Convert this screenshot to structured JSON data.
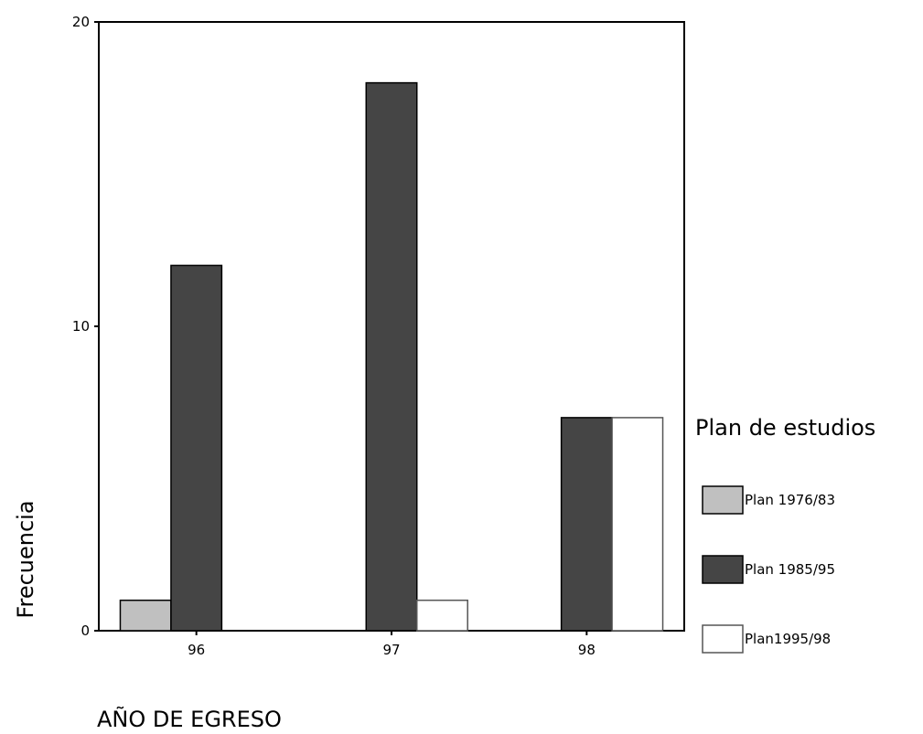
{
  "chart_data": {
    "type": "bar",
    "categories": [
      "96",
      "97",
      "98"
    ],
    "series": [
      {
        "name": "Plan 1976/83",
        "values": [
          1,
          0,
          0
        ],
        "color": "#c0c0c0"
      },
      {
        "name": "Plan 1985/95",
        "values": [
          12,
          18,
          7
        ],
        "color": "#454545"
      },
      {
        "name": "Plan1995/98",
        "values": [
          0,
          1,
          7
        ],
        "color": "#ffffff"
      }
    ],
    "xlabel": "AÑO DE EGRESO",
    "ylabel": "Frecuencia",
    "ylim": [
      0,
      20
    ],
    "yticks": [
      0,
      10,
      20
    ],
    "legend_title": "Plan de estudios",
    "legend_position": "right",
    "grid": false
  }
}
